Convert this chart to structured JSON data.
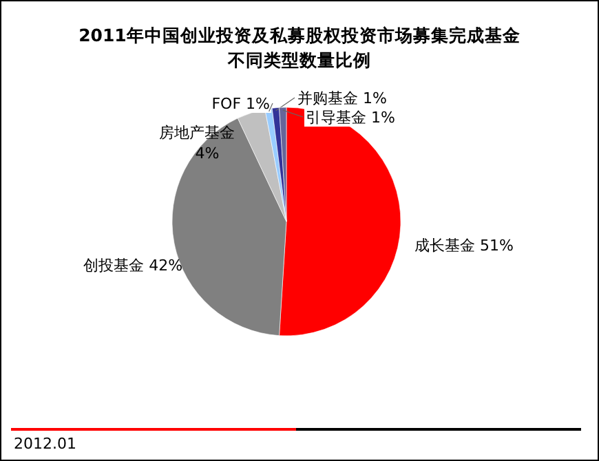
{
  "chart_data": {
    "type": "pie",
    "title": "2011年中国创业投资及私募股权投资市场募集完成基金不同类型数量比例",
    "categories": [
      "成长基金",
      "创投基金",
      "房地产基金",
      "FOF",
      "并购基金",
      "引导基金"
    ],
    "values": [
      51,
      42,
      4,
      1,
      1,
      1
    ],
    "colors": [
      "#ff0000",
      "#808080",
      "#c0c0c0",
      "#99ccff",
      "#333399",
      "#666699"
    ],
    "value_labels": [
      "51%",
      "42%",
      "4%",
      "1%",
      "1%",
      "1%"
    ],
    "annotations": [
      "2012.01"
    ]
  }
}
